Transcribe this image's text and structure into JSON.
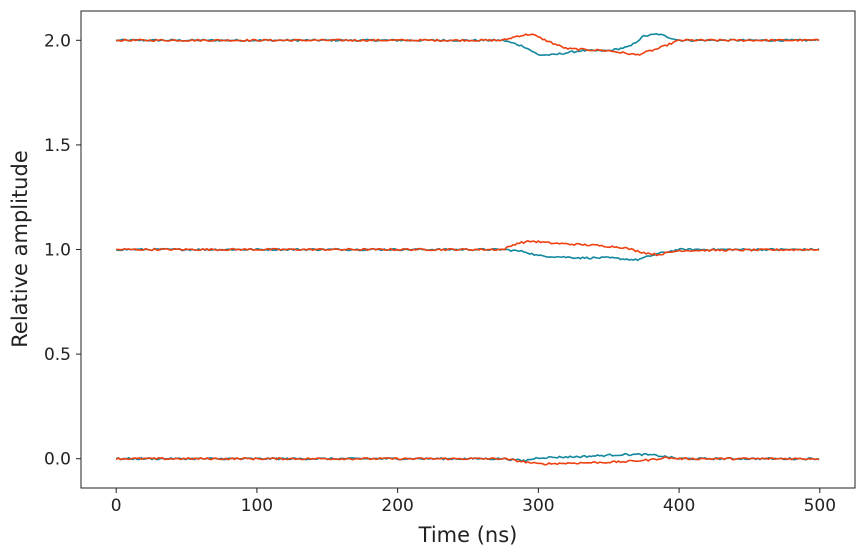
{
  "chart_data": {
    "type": "line",
    "title": "",
    "xlabel": "Time (ns)",
    "ylabel": "Relative amplitude",
    "xlim": [
      -25,
      525
    ],
    "ylim": [
      -0.14,
      2.14
    ],
    "xticks": [
      0,
      100,
      200,
      300,
      400,
      500
    ],
    "xtick_labels": [
      "0",
      "100",
      "200",
      "300",
      "400",
      "500"
    ],
    "yticks": [
      0.0,
      0.5,
      1.0,
      1.5,
      2.0
    ],
    "ytick_labels": [
      "0.0",
      "0.5",
      "1.0",
      "1.5",
      "2.0"
    ],
    "grid": false,
    "legend": "none",
    "colors": {
      "teal": "#12889e",
      "orange": "#ee4010"
    },
    "series": [
      {
        "color": "#12889e",
        "x": [
          0,
          275,
          290,
          300,
          310,
          330,
          350,
          365,
          375,
          385,
          400,
          500
        ],
        "y": [
          2.0,
          2.0,
          1.97,
          1.93,
          1.93,
          1.95,
          1.95,
          1.97,
          2.02,
          2.03,
          2.0,
          2.0
        ]
      },
      {
        "color": "#ee4010",
        "x": [
          0,
          275,
          285,
          295,
          305,
          320,
          350,
          360,
          370,
          385,
          400,
          500
        ],
        "y": [
          2.0,
          2.0,
          2.02,
          2.03,
          2.0,
          1.96,
          1.95,
          1.94,
          1.93,
          1.96,
          2.0,
          2.0
        ]
      },
      {
        "color": "#12889e",
        "x": [
          0,
          275,
          290,
          300,
          330,
          350,
          360,
          370,
          385,
          400,
          500
        ],
        "y": [
          1.0,
          1.0,
          0.99,
          0.97,
          0.96,
          0.96,
          0.955,
          0.95,
          0.98,
          1.0,
          1.0
        ]
      },
      {
        "color": "#ee4010",
        "x": [
          0,
          275,
          285,
          295,
          310,
          340,
          360,
          375,
          385,
          400,
          500
        ],
        "y": [
          1.0,
          1.0,
          1.03,
          1.04,
          1.03,
          1.02,
          1.01,
          0.985,
          0.975,
          0.995,
          1.0
        ]
      },
      {
        "color": "#12889e",
        "x": [
          0,
          275,
          290,
          300,
          330,
          360,
          375,
          385,
          400,
          500
        ],
        "y": [
          0.0,
          0.0,
          -0.01,
          0.005,
          0.01,
          0.02,
          0.02,
          0.015,
          0.0,
          0.0
        ]
      },
      {
        "color": "#ee4010",
        "x": [
          0,
          275,
          290,
          300,
          330,
          360,
          380,
          390,
          400,
          500
        ],
        "y": [
          0.0,
          0.0,
          -0.015,
          -0.025,
          -0.02,
          -0.015,
          -0.005,
          0.005,
          0.0,
          0.0
        ]
      }
    ]
  }
}
